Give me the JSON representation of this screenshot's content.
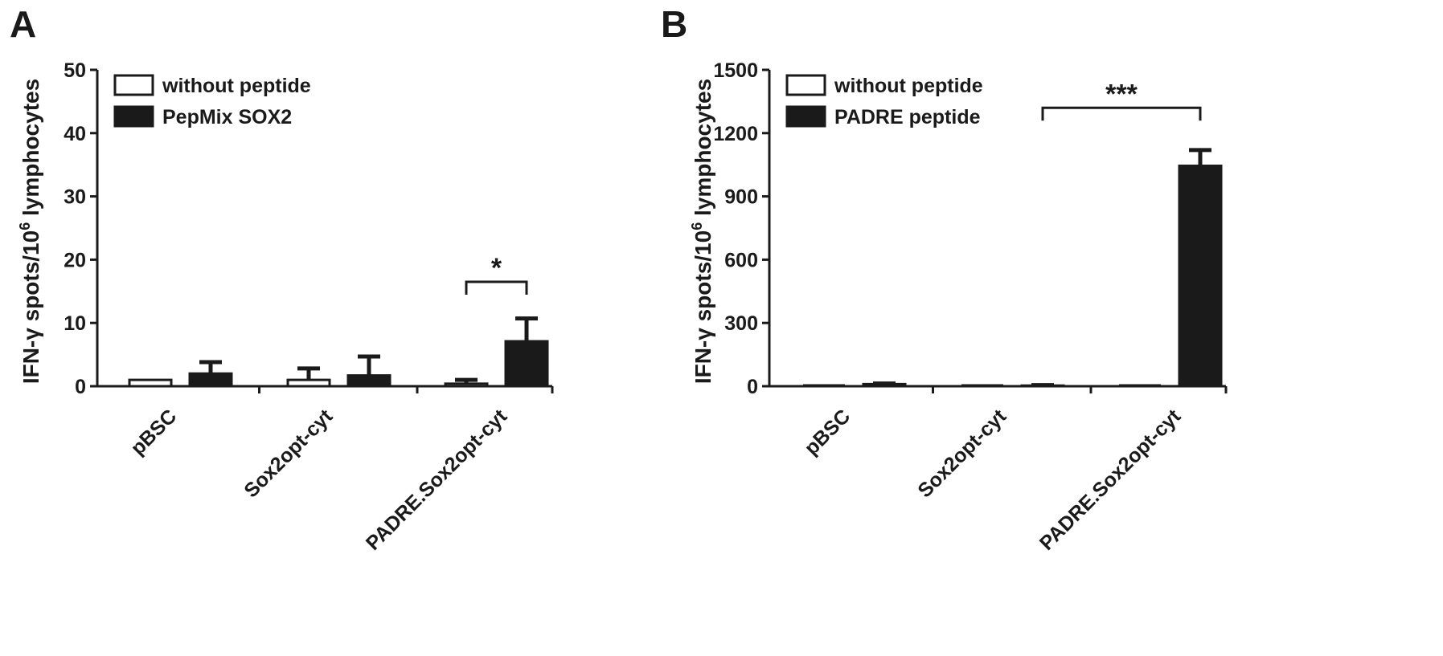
{
  "chart_data": [
    {
      "type": "bar",
      "panel_label": "A",
      "ylabel_main": "IFN-γ spots/10",
      "ylabel_sup": "6",
      "ylabel_tail": " lymphocytes",
      "ylim": [
        0,
        50
      ],
      "yticks": [
        "0",
        "10",
        "20",
        "30",
        "40",
        "50"
      ],
      "categories": [
        "pBSC",
        "Sox2opt-cyt",
        "PADRE.Sox2opt-cyt"
      ],
      "series": [
        {
          "name": "without peptide",
          "color": "#ffffff",
          "values": [
            1.0,
            1.0,
            0.4
          ],
          "errors": [
            0.0,
            1.8,
            0.6
          ]
        },
        {
          "name": "PepMix SOX2",
          "color": "#1a1a1a",
          "values": [
            2.0,
            1.7,
            7.1
          ],
          "errors": [
            1.8,
            3.0,
            3.6
          ]
        }
      ],
      "significance": [
        {
          "category": 2,
          "label": "*",
          "y": 16.5
        }
      ],
      "legend": "top-left"
    },
    {
      "type": "bar",
      "panel_label": "B",
      "ylabel_main": "IFN-γ spots/10",
      "ylabel_sup": "6",
      "ylabel_tail": " lymphocytes",
      "ylim": [
        0,
        1500
      ],
      "yticks": [
        "0",
        "300",
        "600",
        "900",
        "1200",
        "1500"
      ],
      "categories": [
        "pBSC",
        "Sox2opt-cyt",
        "PADRE.Sox2opt-cyt"
      ],
      "series": [
        {
          "name": "without peptide",
          "color": "#ffffff",
          "values": [
            0,
            0,
            0
          ],
          "errors": [
            0,
            0,
            0
          ]
        },
        {
          "name": "PADRE peptide",
          "color": "#1a1a1a",
          "values": [
            10,
            3,
            1045
          ],
          "errors": [
            3,
            2,
            75
          ]
        }
      ],
      "significance": [
        {
          "from_category": 1,
          "to_category": 2,
          "label": "***",
          "y": 1320
        }
      ],
      "legend": "top-left"
    }
  ]
}
